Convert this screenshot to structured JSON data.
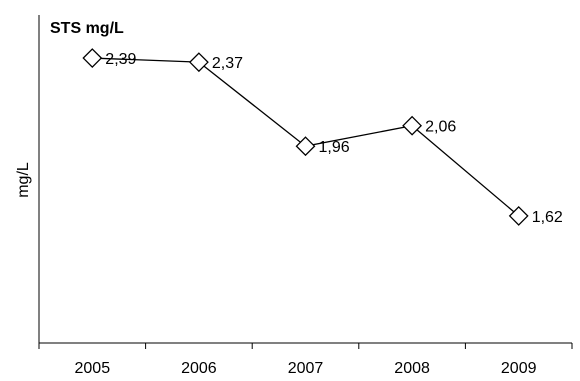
{
  "chart_data": {
    "type": "line",
    "title": "STS mg/L",
    "xlabel": "",
    "ylabel": "mg/L",
    "categories": [
      "2005",
      "2006",
      "2007",
      "2008",
      "2009"
    ],
    "series": [
      {
        "values": [
          2.39,
          2.37,
          1.96,
          2.06,
          1.62
        ],
        "labels": [
          "2,39",
          "2,37",
          "1,96",
          "2,06",
          "1,62"
        ]
      }
    ],
    "ylim": [
      1.0,
      2.6
    ],
    "grid": false,
    "marker": "diamond-open",
    "line_color": "#000000"
  }
}
